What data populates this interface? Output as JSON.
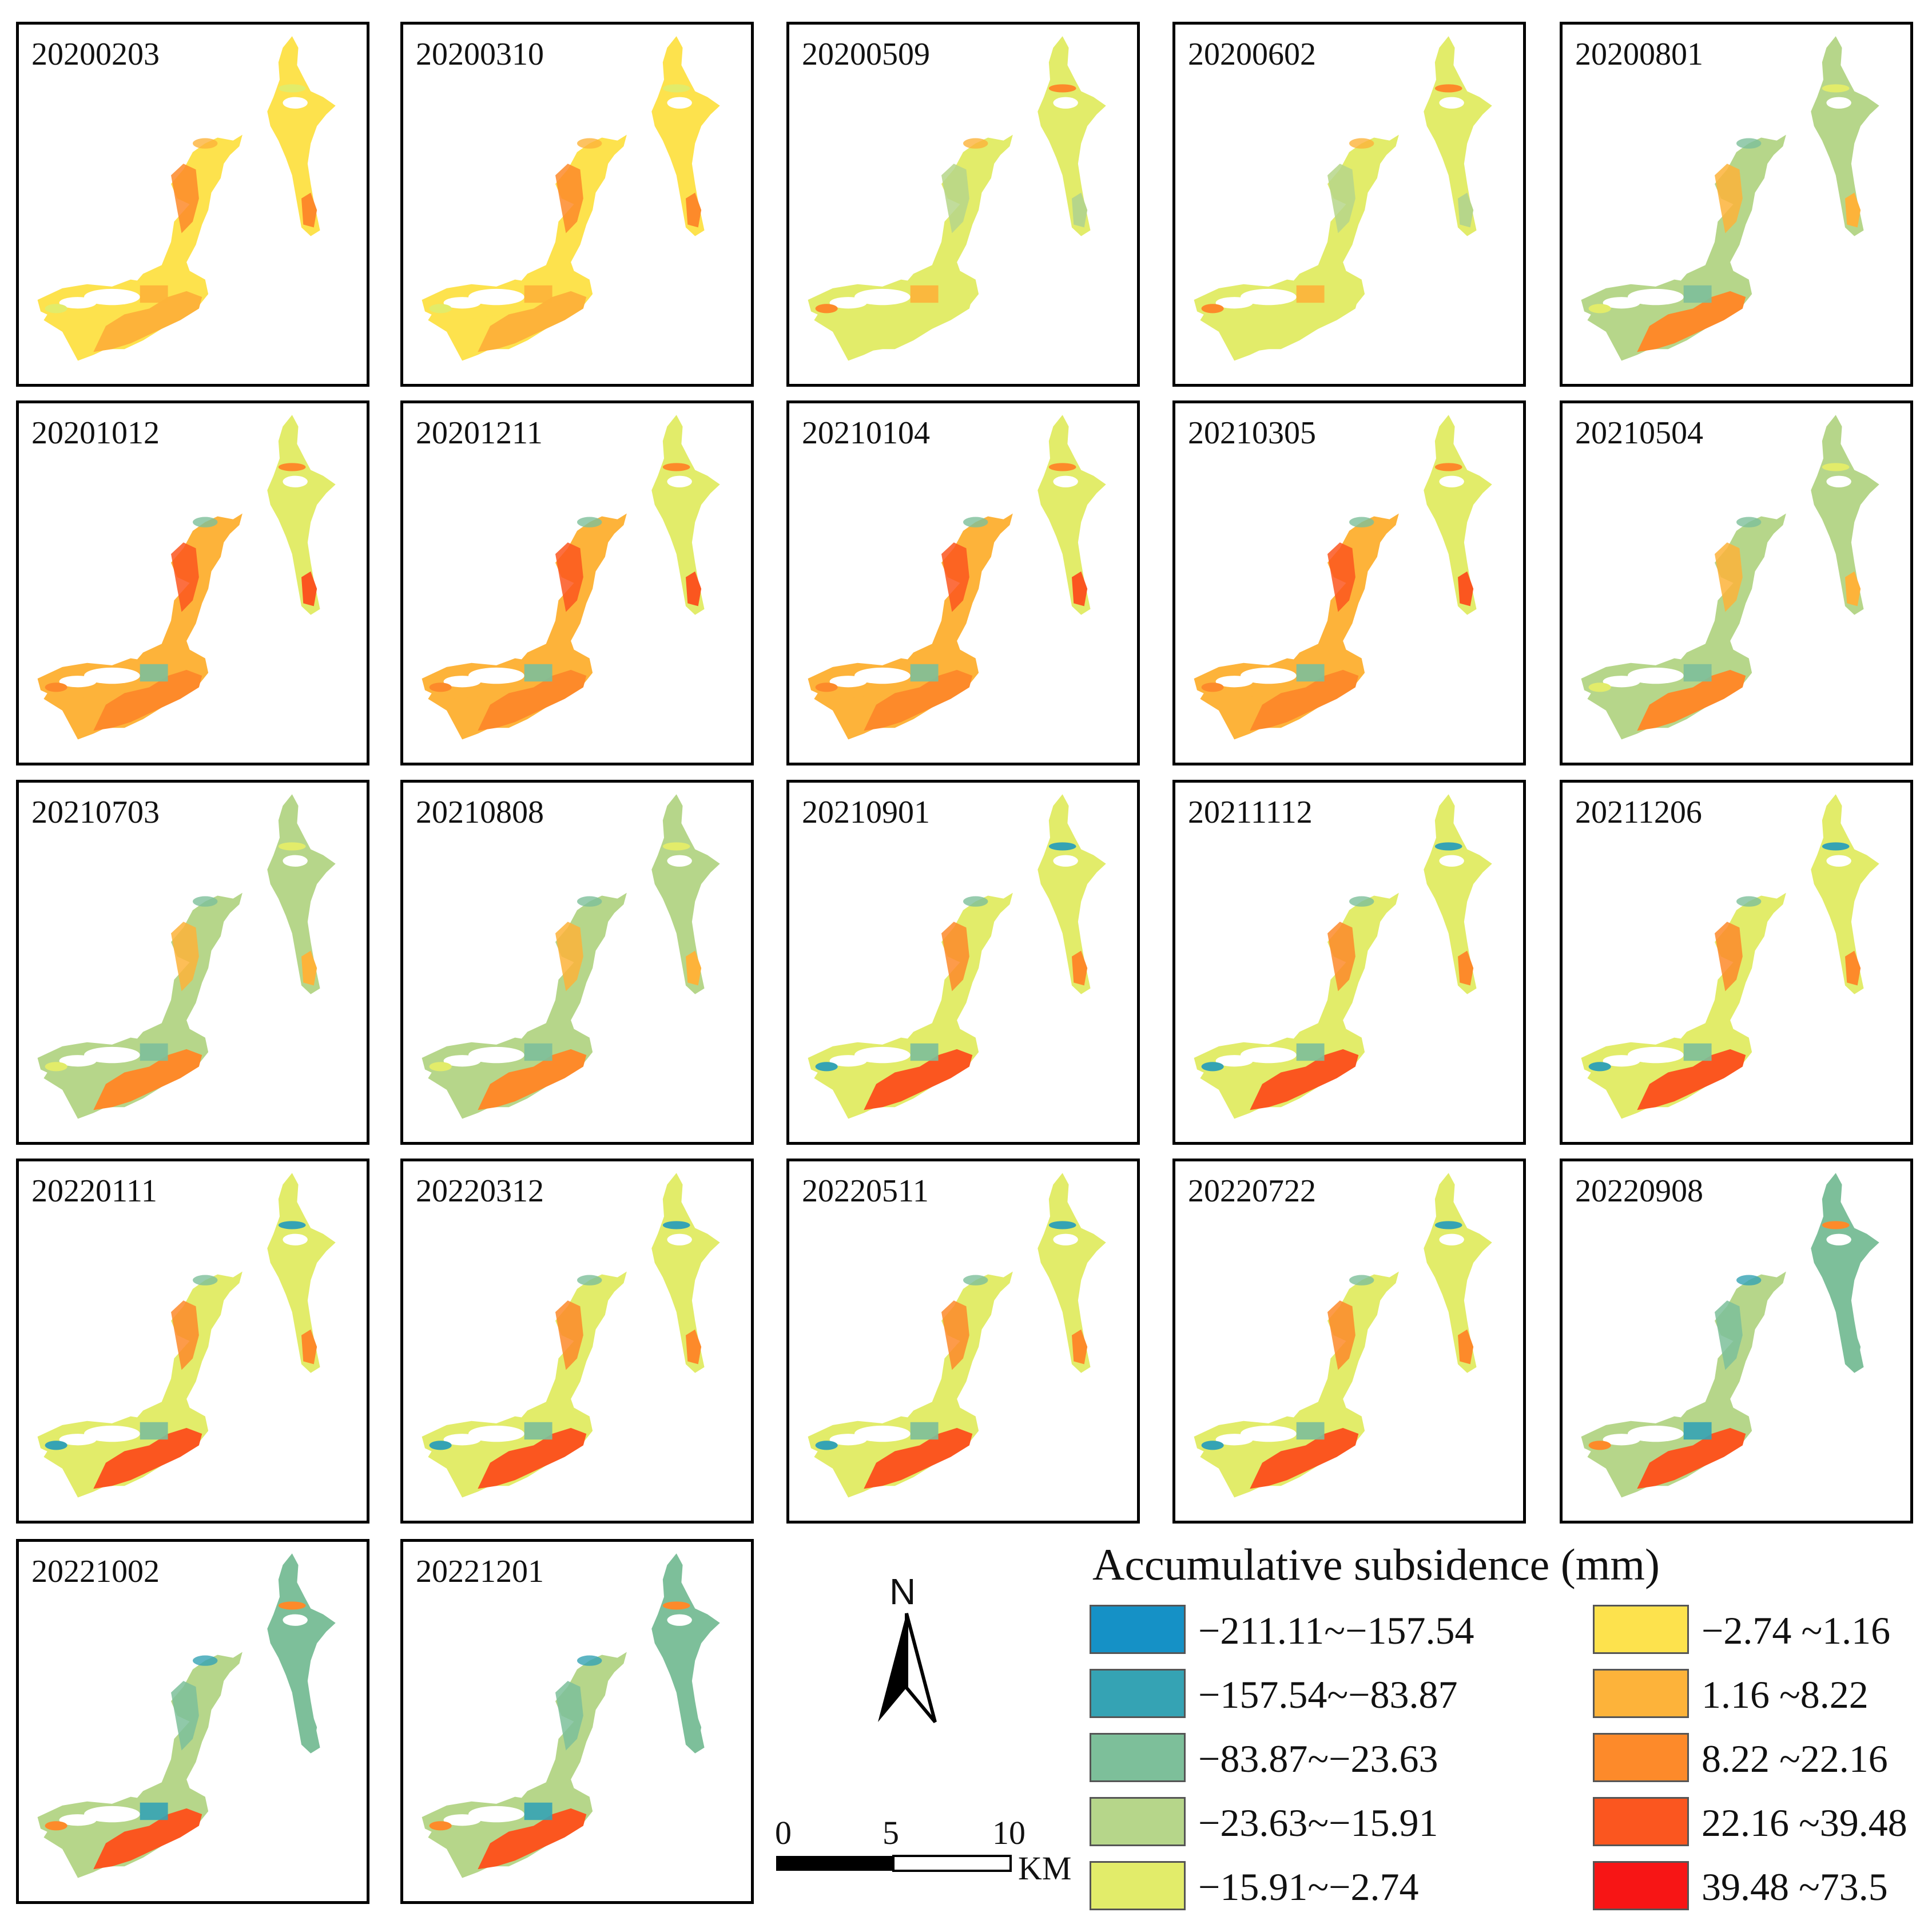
{
  "panels": [
    {
      "label": "20200203",
      "mode": "early"
    },
    {
      "label": "20200310",
      "mode": "early"
    },
    {
      "label": "20200509",
      "mode": "lightgreen"
    },
    {
      "label": "20200602",
      "mode": "lightgreen"
    },
    {
      "label": "20200801",
      "mode": "green"
    },
    {
      "label": "20201012",
      "mode": "orange"
    },
    {
      "label": "20201211",
      "mode": "orange"
    },
    {
      "label": "20210104",
      "mode": "orange"
    },
    {
      "label": "20210305",
      "mode": "orange"
    },
    {
      "label": "20210504",
      "mode": "green"
    },
    {
      "label": "20210703",
      "mode": "green"
    },
    {
      "label": "20210808",
      "mode": "green"
    },
    {
      "label": "20210901",
      "mode": "mixed"
    },
    {
      "label": "20211112",
      "mode": "mixed"
    },
    {
      "label": "20211206",
      "mode": "mixed"
    },
    {
      "label": "20220111",
      "mode": "mixed"
    },
    {
      "label": "20220312",
      "mode": "mixed"
    },
    {
      "label": "20220511",
      "mode": "mixed"
    },
    {
      "label": "20220722",
      "mode": "mixed"
    },
    {
      "label": "20220908",
      "mode": "late"
    },
    {
      "label": "20221002",
      "mode": "late"
    },
    {
      "label": "20221201",
      "mode": "late"
    }
  ],
  "legend": {
    "title": "Accumulative subsidence (mm)",
    "items": [
      {
        "label": "−211.11~−157.54",
        "color": "#1591c6"
      },
      {
        "label": "−157.54~−83.87",
        "color": "#35a3b4"
      },
      {
        "label": "−83.87~−23.63",
        "color": "#7dbf9a"
      },
      {
        "label": "−23.63~−15.91",
        "color": "#b6d68a"
      },
      {
        "label": "−15.91~−2.74",
        "color": "#e2ec6a"
      },
      {
        "label": "−2.74 ~1.16",
        "color": "#fde24d"
      },
      {
        "label": "1.16 ~8.22",
        "color": "#fdb33a"
      },
      {
        "label": "8.22 ~22.16",
        "color": "#fd8a2a"
      },
      {
        "label": "22.16 ~39.48",
        "color": "#fb561f"
      },
      {
        "label": "39.48 ~73.5",
        "color": "#f71515"
      }
    ]
  },
  "north_arrow": {
    "label": "N"
  },
  "scale_bar": {
    "ticks": [
      "0",
      "5",
      "10"
    ],
    "unit": "KM"
  }
}
